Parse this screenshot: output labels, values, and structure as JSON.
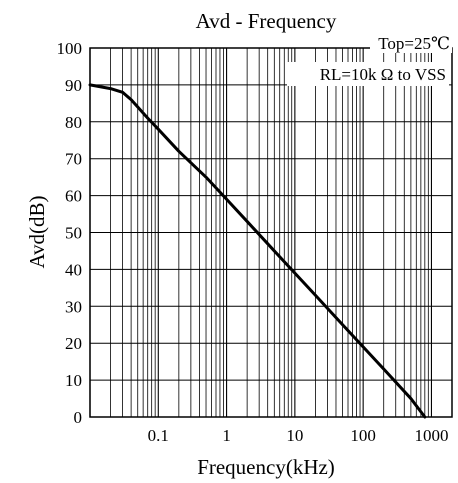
{
  "chart_data": {
    "type": "line",
    "title": "Avd - Frequency",
    "xlabel": "Frequency(kHz)",
    "ylabel": "Avd(dB)",
    "x_scale": "log",
    "xlim": [
      0.01,
      2000
    ],
    "ylim": [
      0,
      100
    ],
    "grid": true,
    "x_ticks": [
      {
        "value": 0.1,
        "label": "0.1"
      },
      {
        "value": 1,
        "label": "1"
      },
      {
        "value": 10,
        "label": "10"
      },
      {
        "value": 100,
        "label": "100"
      },
      {
        "value": 1000,
        "label": "1000"
      }
    ],
    "y_ticks": [
      0,
      10,
      20,
      30,
      40,
      50,
      60,
      70,
      80,
      90,
      100
    ],
    "annotations": [
      {
        "text": "Top=25℃",
        "position": "top-right"
      },
      {
        "text": "RL=10k Ω to VSS",
        "position": "top-right"
      }
    ],
    "series": [
      {
        "color": "#000000",
        "x": [
          0.01,
          0.02,
          0.03,
          0.04,
          0.05,
          0.07,
          0.1,
          0.2,
          0.5,
          1,
          2,
          5,
          10,
          20,
          50,
          100,
          200,
          500,
          800
        ],
        "y": [
          90,
          89,
          88,
          86,
          84,
          81,
          78,
          72,
          65,
          59,
          53,
          45,
          39,
          33,
          25,
          19,
          13,
          5,
          0
        ]
      }
    ]
  }
}
